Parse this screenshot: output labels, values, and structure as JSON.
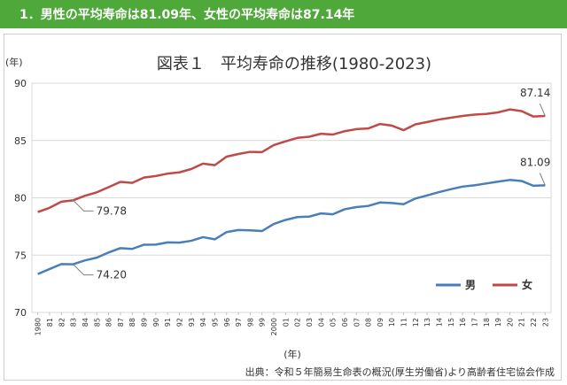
{
  "banner": {
    "text": "1．男性の平均寿命は81.09年、女性の平均寿命は87.14年"
  },
  "source": "出典：令和５年簡易生命表の概況(厚生労働省)より高齢者住宅協会作成",
  "colors": {
    "banner": "#4fa83a",
    "male": "#4a7ebb",
    "female": "#be4b48"
  },
  "chart_data": {
    "type": "line",
    "title": "図表１　平均寿命の推移(1980-2023)",
    "ylabel": "(年)",
    "xlabel": "(年)",
    "ylim": [
      70,
      90
    ],
    "yticks": [
      70,
      75,
      80,
      85,
      90
    ],
    "grid": true,
    "legend_position": "bottom-right",
    "x_labels": [
      "1980",
      "81",
      "82",
      "83",
      "84",
      "85",
      "86",
      "87",
      "88",
      "89",
      "90",
      "91",
      "92",
      "93",
      "94",
      "95",
      "96",
      "97",
      "98",
      "99",
      "2000",
      "01",
      "02",
      "03",
      "04",
      "05",
      "06",
      "07",
      "08",
      "09",
      "10",
      "11",
      "12",
      "13",
      "14",
      "15",
      "16",
      "17",
      "18",
      "19",
      "20",
      "21",
      "22",
      "23"
    ],
    "series": [
      {
        "name": "男",
        "color": "#4a7ebb",
        "values": [
          73.35,
          73.79,
          74.22,
          74.2,
          74.54,
          74.78,
          75.23,
          75.61,
          75.54,
          75.91,
          75.92,
          76.11,
          76.09,
          76.25,
          76.57,
          76.38,
          77.01,
          77.19,
          77.16,
          77.1,
          77.72,
          78.07,
          78.32,
          78.36,
          78.64,
          78.56,
          79.0,
          79.19,
          79.29,
          79.59,
          79.55,
          79.44,
          79.94,
          80.21,
          80.5,
          80.75,
          80.98,
          81.09,
          81.25,
          81.41,
          81.56,
          81.47,
          81.05,
          81.09
        ]
      },
      {
        "name": "女",
        "color": "#be4b48",
        "values": [
          78.76,
          79.13,
          79.66,
          79.78,
          80.18,
          80.48,
          80.93,
          81.39,
          81.3,
          81.77,
          81.9,
          82.11,
          82.22,
          82.51,
          82.98,
          82.85,
          83.59,
          83.82,
          84.01,
          83.99,
          84.6,
          84.93,
          85.23,
          85.33,
          85.59,
          85.52,
          85.81,
          85.99,
          86.05,
          86.44,
          86.3,
          85.9,
          86.41,
          86.61,
          86.83,
          86.99,
          87.14,
          87.26,
          87.32,
          87.45,
          87.71,
          87.57,
          87.09,
          87.14
        ]
      }
    ],
    "annotations": [
      {
        "series": 0,
        "index": 3,
        "text": "74.20"
      },
      {
        "series": 1,
        "index": 3,
        "text": "79.78"
      },
      {
        "series": 0,
        "index": 43,
        "text": "81.09"
      },
      {
        "series": 1,
        "index": 43,
        "text": "87.14"
      }
    ]
  }
}
